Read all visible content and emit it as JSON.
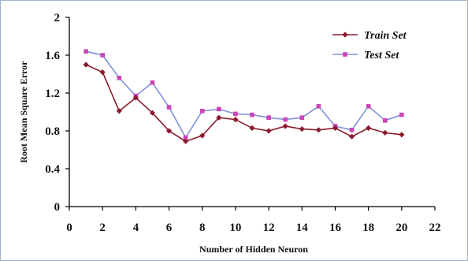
{
  "chart_data": {
    "type": "line",
    "title": "",
    "xlabel": "Number of Hidden Neuron",
    "ylabel": "Root Mean Square Error",
    "xlim": [
      0,
      22
    ],
    "ylim": [
      0,
      2
    ],
    "x_ticks": [
      "0",
      "2",
      "4",
      "6",
      "8",
      "10",
      "12",
      "14",
      "16",
      "18",
      "20",
      "22"
    ],
    "y_ticks": [
      "0",
      "0.4",
      "0.8",
      "1.2",
      "1.6",
      "2"
    ],
    "grid": false,
    "legend_position": "top-right",
    "x": [
      1,
      2,
      3,
      4,
      5,
      6,
      7,
      8,
      9,
      10,
      11,
      12,
      13,
      14,
      15,
      16,
      17,
      18,
      19,
      20
    ],
    "series": [
      {
        "name": "Train Set",
        "color": "#8b1a2e",
        "marker": "diamond",
        "values": [
          1.5,
          1.42,
          1.01,
          1.15,
          0.99,
          0.8,
          0.69,
          0.75,
          0.94,
          0.92,
          0.83,
          0.8,
          0.85,
          0.82,
          0.81,
          0.83,
          0.74,
          0.83,
          0.78,
          0.76
        ]
      },
      {
        "name": "Test Set",
        "color": "#7f93d9",
        "marker": "square",
        "marker_color": "#cc44b8",
        "values": [
          1.64,
          1.6,
          1.36,
          1.17,
          1.31,
          1.05,
          0.73,
          1.01,
          1.03,
          0.98,
          0.97,
          0.94,
          0.92,
          0.94,
          1.06,
          0.85,
          0.81,
          1.06,
          0.91,
          0.97
        ]
      }
    ]
  }
}
